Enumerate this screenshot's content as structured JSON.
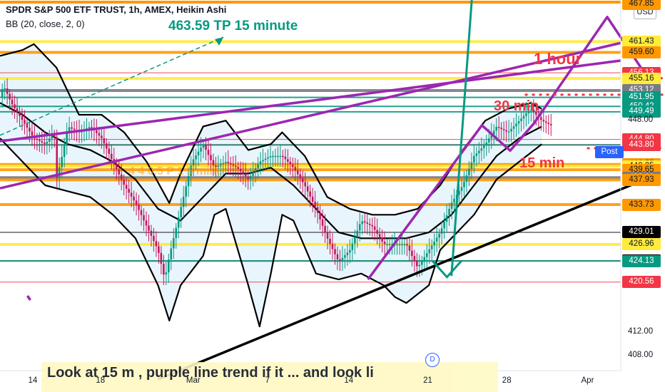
{
  "header": {
    "title": "SPDR S&P 500 ETF TRUST, 1h, AMEX, Heikin Ashi",
    "indicator": "BB (20, close, 2, 0)",
    "currency": "USD"
  },
  "annotations": {
    "tp": "463.59 TP 15 minute",
    "one_hour": "1 hour",
    "thirty_min": "30 min",
    "fifteen_min": "15 min",
    "faded": "4 4 0.5 P 1 5 mine",
    "bottom_note": "Look at 15 m , purple line trend if it ... and look li"
  },
  "axis": {
    "post_label": "Post",
    "badge_letter": "D",
    "y_ticks": [
      {
        "label": "448.00",
        "value": 448.0
      },
      {
        "label": "412.00",
        "value": 412.0
      },
      {
        "label": "408.00",
        "value": 408.0
      }
    ],
    "x_ticks": [
      "14",
      "18",
      "Mar",
      "7",
      "14",
      "21",
      "28",
      "Apr"
    ]
  },
  "colors": {
    "green": "#089981",
    "red": "#f23645",
    "orange": "#ff9800",
    "yellow": "#ffeb3b",
    "grey": "#787b86",
    "purple": "#9c27b0",
    "black": "#000000",
    "band_fill": "#e3f2fd"
  },
  "chart_data": {
    "type": "candlestick",
    "symbol": "SPDR S&P 500 ETF TRUST",
    "timeframe": "1h",
    "ylim": [
      405.5,
      468.5
    ],
    "price_levels": [
      {
        "label": "467.85",
        "value": 467.85,
        "kind": "orange",
        "text": "dark"
      },
      {
        "label": "461.43",
        "value": 461.43,
        "kind": "yellow",
        "text": "dark"
      },
      {
        "label": "459.60",
        "value": 459.6,
        "kind": "orange",
        "text": "dark"
      },
      {
        "label": "456.13",
        "value": 456.13,
        "kind": "red",
        "text": "light"
      },
      {
        "label": "455.16",
        "value": 455.16,
        "kind": "yellow",
        "text": "dark"
      },
      {
        "label": "453.12",
        "value": 453.12,
        "kind": "grey",
        "text": "light"
      },
      {
        "label": "451.95",
        "value": 451.95,
        "kind": "green",
        "text": "light"
      },
      {
        "label": "450.42",
        "value": 450.42,
        "kind": "green",
        "text": "light"
      },
      {
        "label": "449.49",
        "value": 449.49,
        "kind": "green",
        "text": "light"
      },
      {
        "label": "444.80",
        "value": 444.8,
        "kind": "red",
        "text": "light"
      },
      {
        "label": "443.89",
        "value": 443.89,
        "kind": "green",
        "text": "light"
      },
      {
        "label": "443.80",
        "value": 443.8,
        "kind": "red",
        "text": "light"
      },
      {
        "label": "440.55",
        "value": 440.55,
        "kind": "orange",
        "text": "dark"
      },
      {
        "label": "440.25",
        "value": 440.25,
        "kind": "yellow",
        "text": "dark"
      },
      {
        "label": "439.65",
        "value": 439.65,
        "kind": "orange",
        "text": "dark"
      },
      {
        "label": "438.30",
        "value": 438.3,
        "kind": "grey",
        "text": "light"
      },
      {
        "label": "437.93",
        "value": 437.93,
        "kind": "orange",
        "text": "dark"
      },
      {
        "label": "433.73",
        "value": 433.73,
        "kind": "orange",
        "text": "dark"
      },
      {
        "label": "429.01",
        "value": 429.01,
        "kind": "black",
        "text": "light"
      },
      {
        "label": "426.96",
        "value": 426.96,
        "kind": "yellow",
        "text": "dark"
      },
      {
        "label": "424.19",
        "value": 424.19,
        "kind": "black",
        "text": "light"
      },
      {
        "label": "424.13",
        "value": 424.13,
        "kind": "green",
        "text": "light"
      },
      {
        "label": "420.56",
        "value": 420.56,
        "kind": "red",
        "text": "light"
      }
    ],
    "price_path": [
      [
        0,
        452
      ],
      [
        0.3,
        454
      ],
      [
        1,
        451
      ],
      [
        2,
        448
      ],
      [
        3,
        445
      ],
      [
        4,
        444
      ],
      [
        4.8,
        446
      ],
      [
        5,
        438
      ],
      [
        5.5,
        442
      ],
      [
        6,
        447
      ],
      [
        7,
        446
      ],
      [
        8,
        447
      ],
      [
        9,
        445
      ],
      [
        10,
        441
      ],
      [
        11,
        437
      ],
      [
        12,
        434
      ],
      [
        13,
        430
      ],
      [
        14,
        426
      ],
      [
        14.6,
        421
      ],
      [
        15,
        425
      ],
      [
        16,
        433
      ],
      [
        17,
        441
      ],
      [
        18,
        444
      ],
      [
        19,
        440
      ],
      [
        20,
        441
      ],
      [
        21,
        440
      ],
      [
        22,
        438
      ],
      [
        23,
        441
      ],
      [
        24,
        442
      ],
      [
        25,
        442
      ],
      [
        26,
        440
      ],
      [
        27,
        437
      ],
      [
        28,
        433
      ],
      [
        29,
        428
      ],
      [
        30,
        424
      ],
      [
        31,
        426
      ],
      [
        32,
        431
      ],
      [
        33,
        430
      ],
      [
        34,
        427
      ],
      [
        35,
        427
      ],
      [
        36,
        427
      ],
      [
        37,
        423
      ],
      [
        38,
        426
      ],
      [
        39,
        429
      ],
      [
        40,
        434
      ],
      [
        41,
        437
      ],
      [
        42,
        442
      ],
      [
        43,
        444
      ],
      [
        44,
        447
      ],
      [
        45,
        446
      ],
      [
        46,
        448
      ],
      [
        47,
        450
      ],
      [
        48,
        448
      ],
      [
        49,
        447
      ]
    ],
    "bollinger": {
      "upper": [
        [
          0,
          459
        ],
        [
          2,
          460
        ],
        [
          3,
          461
        ],
        [
          5,
          457
        ],
        [
          7,
          449
        ],
        [
          9,
          449
        ],
        [
          11,
          446
        ],
        [
          13,
          441
        ],
        [
          15,
          434
        ],
        [
          16,
          439
        ],
        [
          18,
          447
        ],
        [
          20,
          448
        ],
        [
          22,
          443
        ],
        [
          24,
          444
        ],
        [
          25,
          446
        ],
        [
          27,
          442
        ],
        [
          29,
          435
        ],
        [
          31,
          433
        ],
        [
          33,
          432
        ],
        [
          35,
          432
        ],
        [
          37,
          433
        ],
        [
          39,
          437
        ],
        [
          41,
          443
        ],
        [
          43,
          448
        ],
        [
          45,
          450
        ],
        [
          47,
          451
        ],
        [
          48,
          450
        ]
      ],
      "basis": [
        [
          0,
          451
        ],
        [
          2,
          449
        ],
        [
          4,
          446
        ],
        [
          6,
          444
        ],
        [
          8,
          443
        ],
        [
          10,
          441
        ],
        [
          12,
          438
        ],
        [
          14,
          433
        ],
        [
          16,
          431
        ],
        [
          18,
          435
        ],
        [
          20,
          439
        ],
        [
          22,
          439
        ],
        [
          24,
          440
        ],
        [
          26,
          437
        ],
        [
          28,
          433
        ],
        [
          30,
          429
        ],
        [
          32,
          428
        ],
        [
          34,
          428
        ],
        [
          36,
          428
        ],
        [
          38,
          429
        ],
        [
          40,
          432
        ],
        [
          42,
          437
        ],
        [
          44,
          442
        ],
        [
          46,
          445
        ],
        [
          48,
          447
        ]
      ],
      "lower": [
        [
          0,
          445
        ],
        [
          2,
          441
        ],
        [
          4,
          437
        ],
        [
          6,
          436
        ],
        [
          8,
          435
        ],
        [
          10,
          432
        ],
        [
          12,
          428
        ],
        [
          14,
          420
        ],
        [
          15,
          414
        ],
        [
          16,
          420
        ],
        [
          18,
          425
        ],
        [
          19,
          432
        ],
        [
          20,
          433
        ],
        [
          22,
          420
        ],
        [
          23,
          413
        ],
        [
          24,
          422
        ],
        [
          25,
          432
        ],
        [
          26,
          431
        ],
        [
          28,
          422
        ],
        [
          30,
          421
        ],
        [
          32,
          422
        ],
        [
          34,
          420
        ],
        [
          35,
          418
        ],
        [
          36,
          417
        ],
        [
          38,
          420
        ],
        [
          39,
          426
        ],
        [
          40,
          428
        ],
        [
          42,
          432
        ],
        [
          44,
          438
        ],
        [
          46,
          441
        ],
        [
          48,
          444
        ]
      ]
    },
    "time_axis": {
      "labels": [
        "14",
        "18",
        "Mar",
        "7",
        "14",
        "21",
        "28",
        "Apr"
      ],
      "bar_index": [
        3,
        9,
        17,
        24,
        31,
        38,
        45,
        52
      ],
      "range": [
        0,
        55
      ]
    }
  }
}
